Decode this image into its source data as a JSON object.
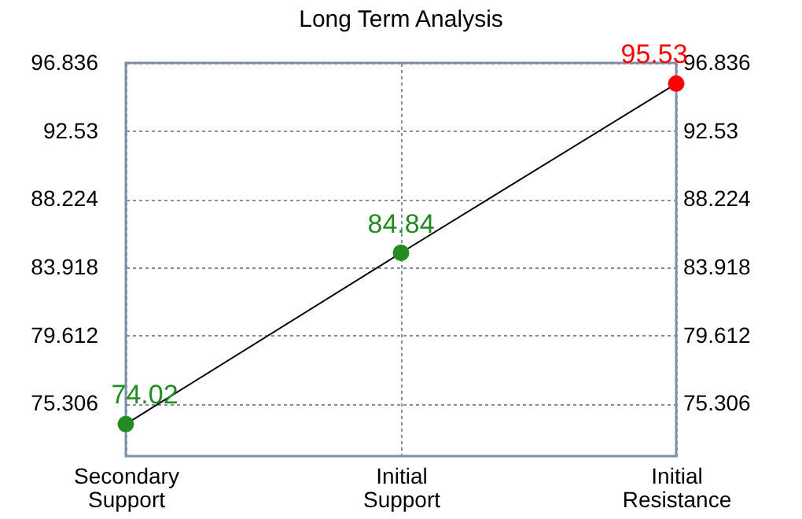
{
  "chart_data": {
    "type": "line",
    "title": "Long Term Analysis",
    "categories": [
      "Secondary Support",
      "Initial Support",
      "Initial Resistance"
    ],
    "series": [
      {
        "color": "#000000",
        "values": [
          74.02,
          84.84,
          95.53
        ],
        "colors": [
          "#228b22",
          "#228b22",
          "#ff0000"
        ]
      }
    ],
    "ylim": [
      72,
      96.836
    ],
    "yticks": [
      75.306,
      79.612,
      83.918,
      88.224,
      92.53,
      96.836
    ],
    "y2lim": [
      72,
      96.836
    ],
    "y2ticks": [
      75.306,
      79.612,
      83.918,
      88.224,
      92.53,
      96.836
    ],
    "grid": true,
    "marker": "circle",
    "data_labels": true
  }
}
